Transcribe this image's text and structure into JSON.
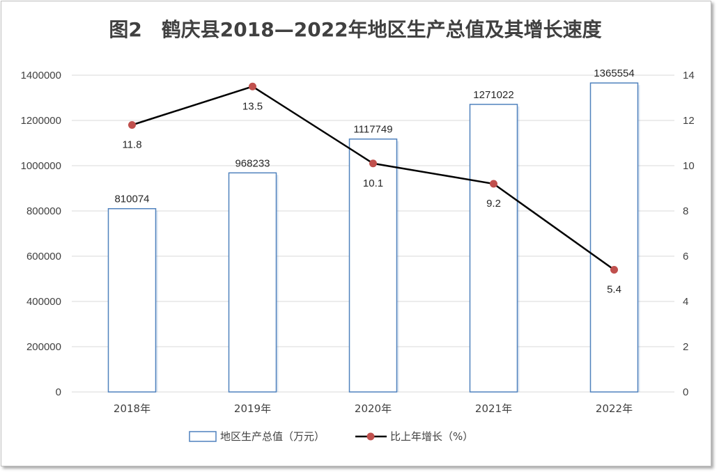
{
  "chart_data": {
    "type": "bar",
    "title": "图2　鹤庆县2018—2022年地区生产总值及其增长速度",
    "categories": [
      "2018年",
      "2019年",
      "2020年",
      "2021年",
      "2022年"
    ],
    "series": [
      {
        "name": "地区生产总值（万元）",
        "type": "bar",
        "axis": "left",
        "values": [
          810074,
          968233,
          1117749,
          1271022,
          1365554
        ]
      },
      {
        "name": "比上年增长（%）",
        "type": "line",
        "axis": "right",
        "values": [
          11.8,
          13.5,
          10.1,
          9.2,
          5.4
        ]
      }
    ],
    "y_left": {
      "ylim": [
        0,
        1400000
      ],
      "ticks": [
        "0",
        "200000",
        "400000",
        "600000",
        "800000",
        "1000000",
        "1200000",
        "1400000"
      ]
    },
    "y_right": {
      "ylim": [
        0,
        14
      ],
      "ticks": [
        "0",
        "2",
        "4",
        "6",
        "8",
        "10",
        "12",
        "14"
      ]
    },
    "grid": true,
    "legend_position": "bottom",
    "colors": {
      "bar_edge": "#4f81bd",
      "bar_fill": "#ffffff",
      "line": "#000000",
      "marker": "#c0504d",
      "grid": "#d9d9d9",
      "text": "#404040"
    }
  }
}
